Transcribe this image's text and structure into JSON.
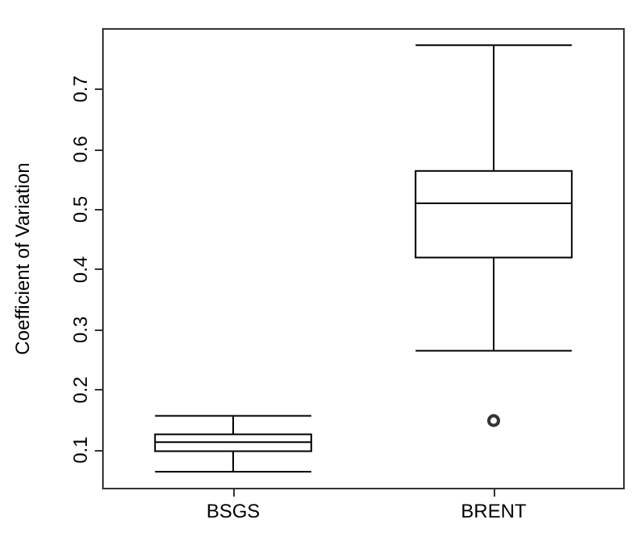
{
  "chart_data": {
    "type": "box",
    "ylabel": "Coefficient of Variation",
    "categories": [
      "BSGS",
      "BRENT"
    ],
    "boxes": [
      {
        "low": 0.064,
        "q1": 0.098,
        "median": 0.113,
        "q3": 0.126,
        "high": 0.157
      },
      {
        "low": 0.265,
        "q1": 0.42,
        "median": 0.51,
        "q3": 0.564,
        "high": 0.773,
        "outliers": [
          0.149
        ]
      }
    ],
    "color": "#000000",
    "ylim": [
      0.036,
      0.8
    ],
    "yticks": [
      0.1,
      0.2,
      0.3,
      0.4,
      0.5,
      0.6,
      0.7
    ],
    "grid": false,
    "legend": false
  }
}
